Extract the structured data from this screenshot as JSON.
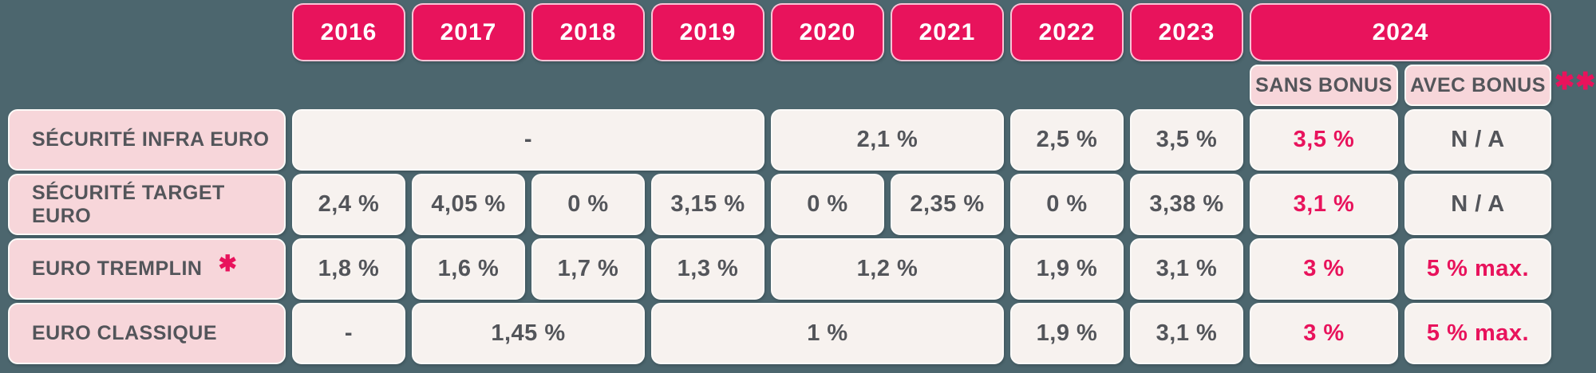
{
  "colors": {
    "background": "#4C666E",
    "accent_magenta": "#E8135C",
    "label_pink": "#F7D6DA",
    "cell_cream": "#F7F2EF",
    "text_dark": "#53555A",
    "border_white": "#FCFAF8"
  },
  "header": {
    "years": [
      "2016",
      "2017",
      "2018",
      "2019",
      "2020",
      "2021",
      "2022",
      "2023"
    ],
    "year_2024": "2024",
    "sans_bonus_label": "SANS BONUS",
    "avec_bonus_label": "AVEC BONUS",
    "footnote_marker": "✱✱"
  },
  "rows": [
    {
      "label": "SÉCURITÉ INFRA EURO",
      "cells": [
        "-",
        "2,1 %",
        "2,5 %",
        "3,5 %",
        "3,5 %",
        "N / A"
      ]
    },
    {
      "label": "SÉCURITÉ TARGET EURO",
      "cells": [
        "2,4 %",
        "4,05 %",
        "0 %",
        "3,15 %",
        "0 %",
        "2,35 %",
        "0 %",
        "3,38 %",
        "3,1 %",
        "N / A"
      ]
    },
    {
      "label": "EURO TREMPLIN",
      "label_footnote": "✱",
      "cells": [
        "1,8 %",
        "1,6 %",
        "1,7 %",
        "1,3 %",
        "1,2 %",
        "1,9 %",
        "3,1 %",
        "3 %",
        "5 % max."
      ]
    },
    {
      "label": "EURO CLASSIQUE",
      "cells": [
        "-",
        "1,45 %",
        "1 %",
        "1,9 %",
        "3,1 %",
        "3 %",
        "5 % max."
      ]
    }
  ],
  "chart_data": {
    "type": "table",
    "columns": [
      "",
      "2016",
      "2017",
      "2018",
      "2019",
      "2020",
      "2021",
      "2022",
      "2023",
      "2024 SANS BONUS",
      "2024 AVEC BONUS"
    ],
    "rows": [
      [
        "SÉCURITÉ INFRA EURO",
        "-",
        "-",
        "-",
        "-",
        "2,1 %",
        "2,1 %",
        "2,5 %",
        "3,5 %",
        "3,5 %",
        "N / A"
      ],
      [
        "SÉCURITÉ TARGET EURO",
        "2,4 %",
        "4,05 %",
        "0 %",
        "3,15 %",
        "0 %",
        "2,35 %",
        "0 %",
        "3,38 %",
        "3,1 %",
        "N / A"
      ],
      [
        "EURO TREMPLIN ✱",
        "1,8 %",
        "1,6 %",
        "1,7 %",
        "1,3 %",
        "1,2 %",
        "1,2 %",
        "1,9 %",
        "3,1 %",
        "3 %",
        "5 % max."
      ],
      [
        "EURO CLASSIQUE",
        "-",
        "1,45 %",
        "1,45 %",
        "1 %",
        "1 %",
        "1 %",
        "1,9 %",
        "3,1 %",
        "3 %",
        "5 % max."
      ]
    ],
    "merged_cells_note": "Values repeated across years represent single merged cells in the visual; 2024 values: SANS BONUS column in magenta, AVEC BONUS column dark gray for N / A and magenta for 5 % max.",
    "legend_markers": {
      "euro_tremplin": "✱",
      "avec_bonus": "✱✱"
    }
  }
}
